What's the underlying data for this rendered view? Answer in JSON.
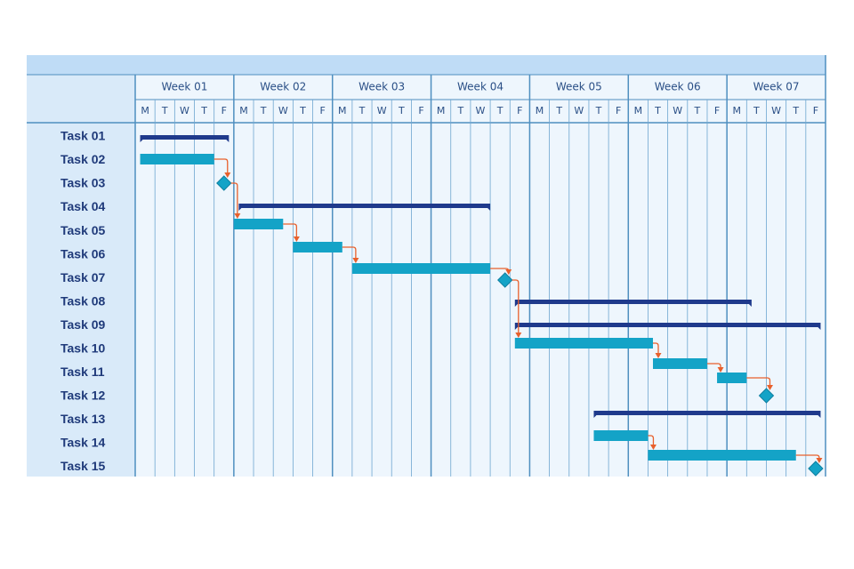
{
  "chart_data": {
    "type": "gantt",
    "weeks": [
      "Week 01",
      "Week 02",
      "Week 03",
      "Week 04",
      "Week 05",
      "Week 06",
      "Week 07"
    ],
    "days": [
      "M",
      "T",
      "W",
      "T",
      "F"
    ],
    "tasks": [
      "Task 01",
      "Task 02",
      "Task 03",
      "Task 04",
      "Task 05",
      "Task 06",
      "Task 07",
      "Task 08",
      "Task 09",
      "Task 10",
      "Task 11",
      "Task 12",
      "Task 13",
      "Task 14",
      "Task 15"
    ],
    "xlim": [
      0,
      35
    ],
    "items": [
      {
        "kind": "summary",
        "start": 0.25,
        "end": 4.75
      },
      {
        "kind": "task",
        "start": 0.25,
        "end": 4
      },
      {
        "kind": "milestone",
        "at": 4.5
      },
      {
        "kind": "summary",
        "start": 5.25,
        "end": 18
      },
      {
        "kind": "task",
        "start": 5,
        "end": 7.5
      },
      {
        "kind": "task",
        "start": 8,
        "end": 10.5
      },
      {
        "kind": "task",
        "start": 11,
        "end": 18
      },
      {
        "kind": "milestone",
        "at": 18.75
      },
      {
        "kind": "summary",
        "start": 19.25,
        "end": 31.25
      },
      {
        "kind": "summary",
        "start": 19.25,
        "end": 34.75
      },
      {
        "kind": "task",
        "start": 19.25,
        "end": 26.25
      },
      {
        "kind": "task",
        "start": 26.25,
        "end": 29
      },
      {
        "kind": "task",
        "start": 29.5,
        "end": 31
      },
      {
        "kind": "milestone",
        "at": 32
      },
      {
        "kind": "summary",
        "start": 23.25,
        "end": 34.75
      },
      {
        "kind": "task",
        "start": 23.25,
        "end": 26
      },
      {
        "kind": "task",
        "start": 26,
        "end": 33.5
      },
      {
        "kind": "milestone",
        "at": 34.5
      }
    ],
    "colors": {
      "summary": "#1f3a8c",
      "task": "#14a3c7",
      "milestone": "#14a3c7",
      "link": "#e8602c"
    }
  }
}
